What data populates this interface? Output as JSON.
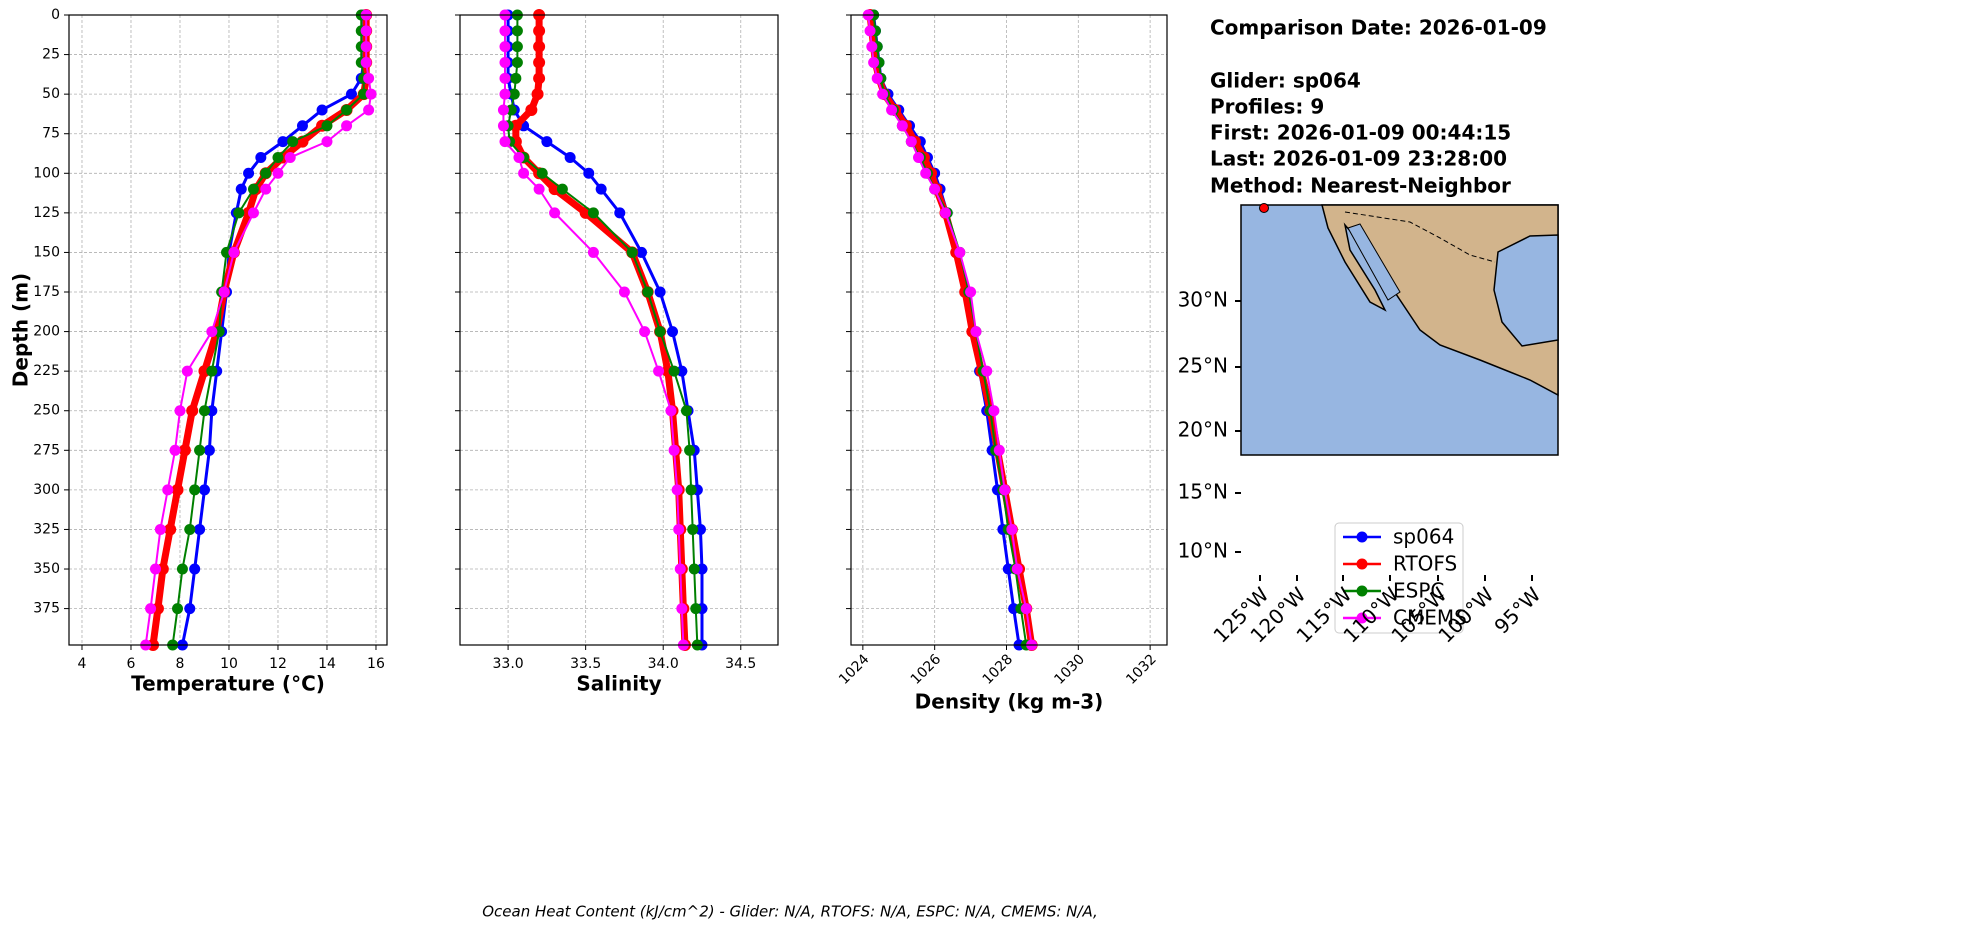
{
  "chart_data": [
    {
      "type": "line",
      "xlabel": "Temperature (°C)",
      "ylabel": "Depth (m)",
      "ytick_labels": true,
      "xtick_rotation": 0,
      "grid": true,
      "xlim": [
        3.47,
        16.45
      ],
      "xticks": [
        4,
        6,
        8,
        10,
        12,
        14,
        16
      ],
      "ylim": [
        398,
        0
      ],
      "yticks": [
        0,
        25,
        50,
        75,
        100,
        125,
        150,
        175,
        200,
        225,
        250,
        275,
        300,
        325,
        350,
        375
      ],
      "y": [
        0,
        10,
        20,
        30,
        40,
        50,
        60,
        70,
        80,
        90,
        100,
        110,
        125,
        150,
        175,
        200,
        225,
        250,
        275,
        300,
        325,
        350,
        375,
        398
      ],
      "series": [
        {
          "name": "sp064",
          "color": "#0000ff",
          "values": [
            15.5,
            15.5,
            15.5,
            15.5,
            15.4,
            15.0,
            13.8,
            13.0,
            12.2,
            11.3,
            10.8,
            10.5,
            10.3,
            10.0,
            9.9,
            9.7,
            9.5,
            9.3,
            9.2,
            9.0,
            8.8,
            8.6,
            8.4,
            8.1
          ]
        },
        {
          "name": "RTOFS",
          "color": "#ff0000",
          "values": [
            15.6,
            15.6,
            15.6,
            15.6,
            15.6,
            15.5,
            14.8,
            13.8,
            13.0,
            12.2,
            11.5,
            11.1,
            10.8,
            10.2,
            9.8,
            9.5,
            9.0,
            8.5,
            8.2,
            7.9,
            7.6,
            7.3,
            7.1,
            6.9
          ]
        },
        {
          "name": "ESPC",
          "color": "#008000",
          "values": [
            15.4,
            15.4,
            15.4,
            15.4,
            15.5,
            15.5,
            14.8,
            14.0,
            12.6,
            12.0,
            11.5,
            11.0,
            10.4,
            9.9,
            9.7,
            9.6,
            9.3,
            9.0,
            8.8,
            8.6,
            8.4,
            8.1,
            7.9,
            7.7
          ]
        },
        {
          "name": "CMEMS",
          "color": "#ff00ff",
          "values": [
            15.6,
            15.6,
            15.6,
            15.6,
            15.7,
            15.8,
            15.7,
            14.8,
            14.0,
            12.5,
            12.0,
            11.5,
            11.0,
            10.2,
            9.8,
            9.3,
            8.3,
            8.0,
            7.8,
            7.5,
            7.2,
            7.0,
            6.8,
            6.6
          ]
        }
      ]
    },
    {
      "type": "line",
      "xlabel": "Salinity",
      "ytick_labels": false,
      "xtick_rotation": 0,
      "grid": true,
      "xlim": [
        32.69,
        34.74
      ],
      "xticks": [
        {
          "value": 33,
          "label": "33.0"
        },
        33.5,
        {
          "value": 34,
          "label": "34.0"
        },
        34.5
      ],
      "ylim": [
        398,
        0
      ],
      "yticks": [
        0,
        25,
        50,
        75,
        100,
        125,
        150,
        175,
        200,
        225,
        250,
        275,
        300,
        325,
        350,
        375
      ],
      "y": [
        0,
        10,
        20,
        30,
        40,
        50,
        60,
        70,
        80,
        90,
        100,
        110,
        125,
        150,
        175,
        200,
        225,
        250,
        275,
        300,
        325,
        350,
        375,
        398
      ],
      "series": [
        {
          "color": "#0000ff",
          "values": [
            33.0,
            33.0,
            33.0,
            33.0,
            33.0,
            33.02,
            33.04,
            33.1,
            33.25,
            33.4,
            33.52,
            33.6,
            33.72,
            33.86,
            33.98,
            34.06,
            34.12,
            34.16,
            34.2,
            34.22,
            34.24,
            34.25,
            34.25,
            34.25
          ]
        },
        {
          "color": "#ff0000",
          "values": [
            33.2,
            33.2,
            33.2,
            33.2,
            33.2,
            33.19,
            33.15,
            33.05,
            33.05,
            33.1,
            33.2,
            33.3,
            33.5,
            33.8,
            33.9,
            33.98,
            34.03,
            34.06,
            34.08,
            34.1,
            34.11,
            34.12,
            34.13,
            34.14
          ]
        },
        {
          "color": "#008000",
          "values": [
            33.06,
            33.06,
            33.06,
            33.06,
            33.05,
            33.04,
            33.02,
            33.0,
            33.01,
            33.1,
            33.22,
            33.35,
            33.55,
            33.8,
            33.9,
            33.98,
            34.07,
            34.15,
            34.17,
            34.18,
            34.19,
            34.2,
            34.21,
            34.22
          ]
        },
        {
          "color": "#ff00ff",
          "values": [
            32.98,
            32.98,
            32.98,
            32.98,
            32.98,
            32.98,
            32.97,
            32.97,
            32.98,
            33.07,
            33.1,
            33.2,
            33.3,
            33.55,
            33.75,
            33.88,
            33.97,
            34.05,
            34.07,
            34.09,
            34.1,
            34.11,
            34.12,
            34.13
          ]
        }
      ]
    },
    {
      "type": "line",
      "xlabel": "Density (kg m-3)",
      "ytick_labels": false,
      "xtick_rotation": 45,
      "grid": true,
      "xlim": [
        1023.67,
        1032.47
      ],
      "xticks": [
        1024,
        1026,
        1028,
        1030,
        1032
      ],
      "ylim": [
        398,
        0
      ],
      "yticks": [
        0,
        25,
        50,
        75,
        100,
        125,
        150,
        175,
        200,
        225,
        250,
        275,
        300,
        325,
        350,
        375
      ],
      "y": [
        0,
        10,
        20,
        30,
        40,
        50,
        60,
        70,
        80,
        90,
        100,
        110,
        125,
        150,
        175,
        200,
        225,
        250,
        275,
        300,
        325,
        350,
        375,
        398
      ],
      "series": [
        {
          "color": "#0000ff",
          "values": [
            1024.3,
            1024.35,
            1024.4,
            1024.45,
            1024.5,
            1024.7,
            1025.0,
            1025.3,
            1025.6,
            1025.8,
            1026.0,
            1026.15,
            1026.35,
            1026.6,
            1026.85,
            1027.05,
            1027.25,
            1027.45,
            1027.6,
            1027.75,
            1027.9,
            1028.05,
            1028.2,
            1028.35
          ]
        },
        {
          "color": "#ff0000",
          "values": [
            1024.2,
            1024.25,
            1024.3,
            1024.35,
            1024.45,
            1024.6,
            1024.9,
            1025.2,
            1025.45,
            1025.7,
            1025.9,
            1026.05,
            1026.3,
            1026.6,
            1026.85,
            1027.05,
            1027.3,
            1027.55,
            1027.75,
            1027.95,
            1028.15,
            1028.35,
            1028.55,
            1028.7
          ]
        },
        {
          "color": "#008000",
          "values": [
            1024.3,
            1024.35,
            1024.4,
            1024.45,
            1024.5,
            1024.6,
            1024.85,
            1025.1,
            1025.35,
            1025.6,
            1025.8,
            1026.0,
            1026.35,
            1026.7,
            1026.95,
            1027.15,
            1027.35,
            1027.55,
            1027.7,
            1027.9,
            1028.05,
            1028.25,
            1028.4,
            1028.55
          ]
        },
        {
          "color": "#ff00ff",
          "values": [
            1024.15,
            1024.2,
            1024.25,
            1024.3,
            1024.4,
            1024.55,
            1024.8,
            1025.1,
            1025.35,
            1025.55,
            1025.75,
            1026.0,
            1026.3,
            1026.7,
            1027.0,
            1027.15,
            1027.45,
            1027.65,
            1027.8,
            1027.95,
            1028.15,
            1028.3,
            1028.55,
            1028.7
          ]
        }
      ]
    }
  ],
  "info": [
    "Comparison Date: 2026-01-09",
    "Glider: sp064",
    "Profiles: 9",
    "First: 2026-01-09 00:44:15",
    "Last: 2026-01-09 23:28:00",
    "Method: Nearest-Neighbor"
  ],
  "map": {
    "lat_labels": [
      "30°N",
      "25°N",
      "20°N",
      "15°N",
      "10°N"
    ],
    "lon_labels": [
      "125°W",
      "120°W",
      "115°W",
      "110°W",
      "105°W",
      "100°W",
      "95°W"
    ]
  },
  "footer": "Ocean Heat Content (kJ/cm^2) - Glider: N/A,  RTOFS: N/A,  ESPC: N/A,  CMEMS: N/A,"
}
